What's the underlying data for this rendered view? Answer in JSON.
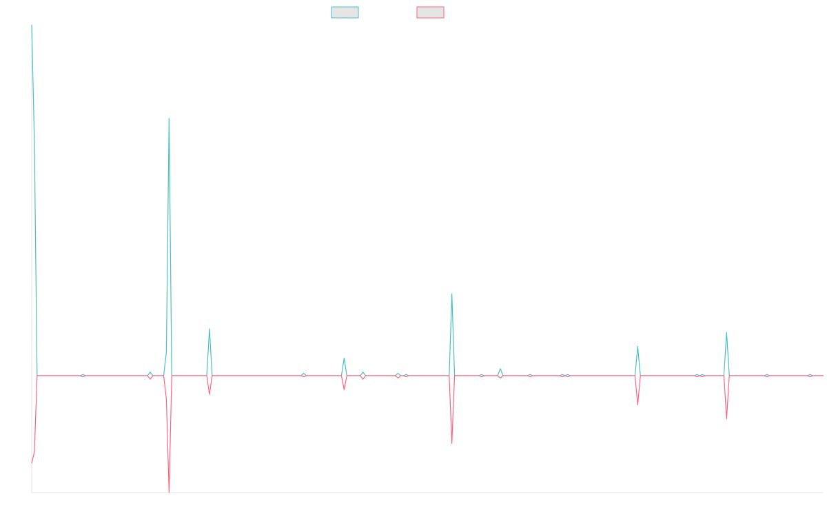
{
  "colors": {
    "series_a": "#4bc0c0",
    "series_b": "#ff6384",
    "legend_fill": "#e5e5e5",
    "axis": "#e3e3e3",
    "background": "#ffffff"
  },
  "legend": {
    "position": "top-center",
    "entries": [
      "",
      ""
    ]
  },
  "chart_data": {
    "type": "line",
    "grid": false,
    "legend": "top-center",
    "xlim": [
      0,
      147
    ],
    "ylim": [
      -100,
      300
    ],
    "series": [
      {
        "color": "#4bc0c0",
        "points": [
          [
            0,
            300
          ],
          [
            0.5,
            200
          ],
          [
            1,
            0
          ],
          [
            9,
            0
          ],
          [
            9.5,
            1
          ],
          [
            10,
            0
          ],
          [
            21.5,
            0
          ],
          [
            22,
            3
          ],
          [
            22.5,
            0
          ],
          [
            24.5,
            0
          ],
          [
            25,
            20
          ],
          [
            25.5,
            220
          ],
          [
            26,
            0
          ],
          [
            32.5,
            0
          ],
          [
            33,
            40
          ],
          [
            33.5,
            0
          ],
          [
            50,
            0
          ],
          [
            50.5,
            2
          ],
          [
            51,
            0
          ],
          [
            57.5,
            0
          ],
          [
            58,
            15
          ],
          [
            58.5,
            0
          ],
          [
            61,
            0
          ],
          [
            61.5,
            3
          ],
          [
            62,
            0
          ],
          [
            67.5,
            0
          ],
          [
            68,
            2
          ],
          [
            68.5,
            0
          ],
          [
            69,
            0
          ],
          [
            69.5,
            1
          ],
          [
            70,
            0
          ],
          [
            77.5,
            0
          ],
          [
            78,
            70
          ],
          [
            78.5,
            0
          ],
          [
            83,
            0
          ],
          [
            83.5,
            1
          ],
          [
            84,
            0
          ],
          [
            86.5,
            0
          ],
          [
            87,
            6
          ],
          [
            87.5,
            0
          ],
          [
            92,
            0
          ],
          [
            92.5,
            1
          ],
          [
            93,
            0
          ],
          [
            98,
            0
          ],
          [
            98.5,
            1
          ],
          [
            99,
            0
          ],
          [
            99.5,
            1
          ],
          [
            100,
            0
          ],
          [
            112,
            0
          ],
          [
            112.5,
            25
          ],
          [
            113,
            0
          ],
          [
            123,
            0
          ],
          [
            123.5,
            1
          ],
          [
            124,
            0
          ],
          [
            124.5,
            1
          ],
          [
            125,
            0
          ],
          [
            128.5,
            0
          ],
          [
            129,
            37
          ],
          [
            129.5,
            0
          ],
          [
            136,
            0
          ],
          [
            136.5,
            1
          ],
          [
            137,
            0
          ],
          [
            144,
            0
          ],
          [
            144.5,
            1
          ],
          [
            145,
            0
          ],
          [
            147,
            0
          ]
        ]
      },
      {
        "color": "#ff6384",
        "points": [
          [
            0,
            -75
          ],
          [
            0.5,
            -65
          ],
          [
            1,
            0
          ],
          [
            9,
            0
          ],
          [
            9.5,
            -1
          ],
          [
            10,
            0
          ],
          [
            21.5,
            0
          ],
          [
            22,
            -3
          ],
          [
            22.5,
            0
          ],
          [
            24.5,
            0
          ],
          [
            25,
            -20
          ],
          [
            25.5,
            -100
          ],
          [
            26,
            0
          ],
          [
            32.5,
            0
          ],
          [
            33,
            -16
          ],
          [
            33.5,
            0
          ],
          [
            50,
            0
          ],
          [
            50.5,
            -1
          ],
          [
            51,
            0
          ],
          [
            57.5,
            0
          ],
          [
            58,
            -12
          ],
          [
            58.5,
            0
          ],
          [
            61,
            0
          ],
          [
            61.5,
            -3
          ],
          [
            62,
            0
          ],
          [
            67.5,
            0
          ],
          [
            68,
            -2
          ],
          [
            68.5,
            0
          ],
          [
            69,
            0
          ],
          [
            69.5,
            -1
          ],
          [
            70,
            0
          ],
          [
            77.5,
            0
          ],
          [
            78,
            -58
          ],
          [
            78.5,
            0
          ],
          [
            83,
            0
          ],
          [
            83.5,
            -1
          ],
          [
            84,
            0
          ],
          [
            86.5,
            0
          ],
          [
            87,
            -2
          ],
          [
            87.5,
            0
          ],
          [
            92,
            0
          ],
          [
            92.5,
            -1
          ],
          [
            93,
            0
          ],
          [
            98,
            0
          ],
          [
            98.5,
            -1
          ],
          [
            99,
            0
          ],
          [
            99.5,
            -1
          ],
          [
            100,
            0
          ],
          [
            112,
            0
          ],
          [
            112.5,
            -25
          ],
          [
            113,
            0
          ],
          [
            123,
            0
          ],
          [
            123.5,
            -1
          ],
          [
            124,
            0
          ],
          [
            124.5,
            -1
          ],
          [
            125,
            0
          ],
          [
            128.5,
            0
          ],
          [
            129,
            -37
          ],
          [
            129.5,
            0
          ],
          [
            136,
            0
          ],
          [
            136.5,
            -1
          ],
          [
            137,
            0
          ],
          [
            144,
            0
          ],
          [
            144.5,
            -1
          ],
          [
            145,
            0
          ],
          [
            147,
            0
          ]
        ]
      }
    ]
  }
}
